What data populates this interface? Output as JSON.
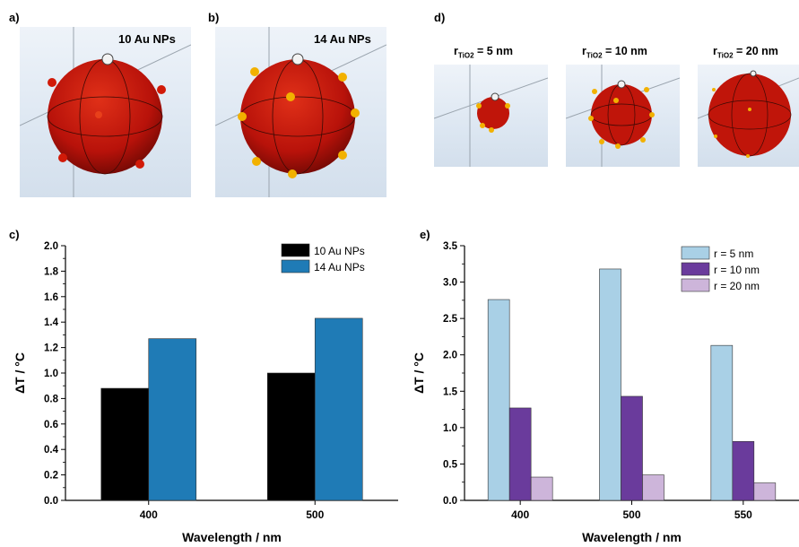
{
  "panels": {
    "a": {
      "letter": "a)",
      "label": "10 Au NPs"
    },
    "b": {
      "letter": "b)",
      "label": "14 Au NPs"
    },
    "c": {
      "letter": "c)"
    },
    "d": {
      "letter": "d)",
      "r_prefix": "r",
      "r_sub": "TiO2",
      "labels": [
        " = 5 nm",
        " = 10 nm",
        " = 20 nm"
      ]
    },
    "e": {
      "letter": "e)"
    }
  },
  "colors": {
    "black": "#000000",
    "blue": "#1f7bb6",
    "light_blue": "#a9d0e6",
    "purple": "#6a3b9c",
    "lilac": "#cdb5da",
    "sphere": "#c0150a",
    "gold_np": "#f2b100",
    "red_np": "#d11a08"
  },
  "chart_data": [
    {
      "type": "bar",
      "title": "",
      "xlabel": "Wavelength / nm",
      "ylabel": "ΔT / °C",
      "categories": [
        "400",
        "500"
      ],
      "series": [
        {
          "name": "10 Au NPs",
          "values": [
            0.88,
            1.0
          ]
        },
        {
          "name": "14 Au NPs",
          "values": [
            1.27,
            1.43
          ]
        }
      ],
      "ylim": [
        0,
        2.0
      ],
      "yticks": [
        "0.0",
        "0.2",
        "0.4",
        "0.6",
        "0.8",
        "1.0",
        "1.2",
        "1.4",
        "1.6",
        "1.8",
        "2.0"
      ],
      "legend": "top-right",
      "grid": false
    },
    {
      "type": "bar",
      "title": "",
      "xlabel": "Wavelength / nm",
      "ylabel": "ΔT / °C",
      "categories": [
        "400",
        "500",
        "550"
      ],
      "series": [
        {
          "name": "r = 5 nm",
          "values": [
            2.76,
            3.18,
            2.13
          ]
        },
        {
          "name": "r = 10 nm",
          "values": [
            1.27,
            1.43,
            0.81
          ]
        },
        {
          "name": "r = 20 nm",
          "values": [
            0.32,
            0.35,
            0.24
          ]
        }
      ],
      "ylim": [
        0,
        3.5
      ],
      "yticks": [
        "0.0",
        "0.5",
        "1.0",
        "1.5",
        "2.0",
        "2.5",
        "3.0",
        "3.5"
      ],
      "legend": "top-right",
      "grid": false
    }
  ]
}
